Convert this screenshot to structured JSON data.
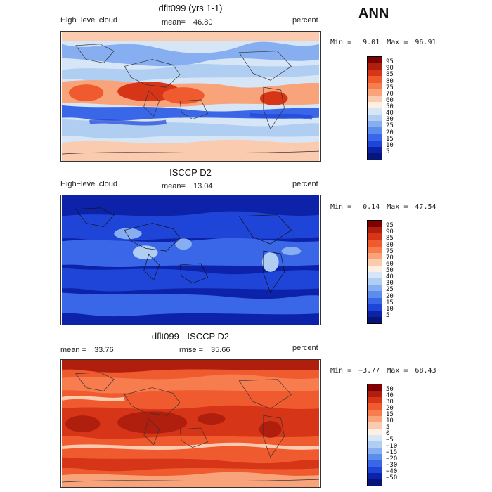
{
  "header": {
    "season": "ANN"
  },
  "panels": [
    {
      "title": "dflt099 (yrs 1-1)",
      "left_label": "High−level cloud",
      "mean_label": "mean=",
      "mean_value": "46.80",
      "unit": "percent",
      "stats": {
        "min_label": "Min =",
        "min": "9.01",
        "max_label": "Max =",
        "max": "96.91"
      },
      "colorbar": {
        "labels": [
          "95",
          "90",
          "85",
          "80",
          "75",
          "70",
          "60",
          "50",
          "40",
          "30",
          "25",
          "20",
          "15",
          "10",
          "5"
        ],
        "colors": [
          "#7f0000",
          "#b01e0e",
          "#d63518",
          "#ef5a2e",
          "#f77c4e",
          "#f9a37a",
          "#fbcbb0",
          "#fdf0e2",
          "#d6e6f7",
          "#b0cef2",
          "#86aef0",
          "#5c8cec",
          "#3a67e8",
          "#1f44d8",
          "#0c22a8",
          "#061678"
        ]
      }
    },
    {
      "title": "ISCCP D2",
      "left_label": "High−level cloud",
      "mean_label": "mean=",
      "mean_value": "13.04",
      "unit": "percent",
      "stats": {
        "min_label": "Min =",
        "min": "0.14",
        "max_label": "Max =",
        "max": "47.54"
      },
      "colorbar": {
        "labels": [
          "95",
          "90",
          "85",
          "80",
          "75",
          "70",
          "60",
          "50",
          "40",
          "30",
          "25",
          "20",
          "15",
          "10",
          "5"
        ],
        "colors": [
          "#7f0000",
          "#b01e0e",
          "#d63518",
          "#ef5a2e",
          "#f77c4e",
          "#f9a37a",
          "#fbcbb0",
          "#fdf0e2",
          "#d6e6f7",
          "#b0cef2",
          "#86aef0",
          "#5c8cec",
          "#3a67e8",
          "#1f44d8",
          "#0c22a8",
          "#061678"
        ]
      }
    },
    {
      "title": "dflt099 - ISCCP D2",
      "mean_label": "mean =",
      "mean_value": "33.76",
      "rmse_label": "rmse =",
      "rmse_value": "35.66",
      "unit": "percent",
      "stats": {
        "min_label": "Min =",
        "min": "−3.77",
        "max_label": "Max =",
        "max": "68.43"
      },
      "colorbar": {
        "labels": [
          "50",
          "40",
          "30",
          "20",
          "15",
          "10",
          "5",
          "0",
          "−5",
          "−10",
          "−15",
          "−20",
          "−30",
          "−40",
          "−50"
        ],
        "colors": [
          "#7f0000",
          "#b01e0e",
          "#d63518",
          "#ef5a2e",
          "#f77c4e",
          "#f9a37a",
          "#fbcbb0",
          "#fdf0e2",
          "#d6e6f7",
          "#b0cef2",
          "#86aef0",
          "#5c8cec",
          "#3a67e8",
          "#1f44d8",
          "#0c22a8",
          "#061678"
        ]
      }
    }
  ]
}
